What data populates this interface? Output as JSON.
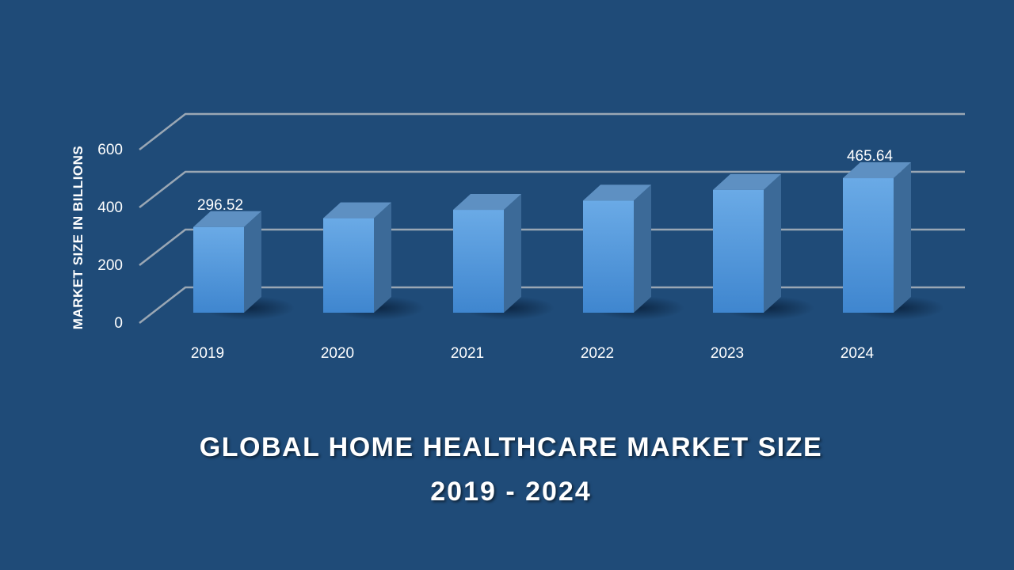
{
  "chart_data": {
    "type": "bar",
    "title_line1": "GLOBAL HOME HEALTHCARE MARKET SIZE",
    "title_line2": "2019 - 2024",
    "xlabel": "",
    "ylabel": "MARKET SIZE IN BILLIONS",
    "categories": [
      "2019",
      "2020",
      "2021",
      "2022",
      "2023",
      "2024"
    ],
    "values": [
      296.52,
      327,
      356,
      388,
      425,
      465.64
    ],
    "data_labels": [
      "296.52",
      "",
      "",
      "",
      "",
      "465.64"
    ],
    "ylim": [
      0,
      700
    ],
    "yticks": [
      0,
      200,
      400,
      600
    ],
    "grid": true,
    "three_d": true,
    "colors": {
      "background": "#1f4b78",
      "bar_front_top": "#6aaae6",
      "bar_front_bottom": "#3f86cf",
      "bar_side": "#3c6a98",
      "bar_top": "#5e90c2",
      "gridline": "#9aa7b4",
      "text": "#ffffff"
    }
  }
}
